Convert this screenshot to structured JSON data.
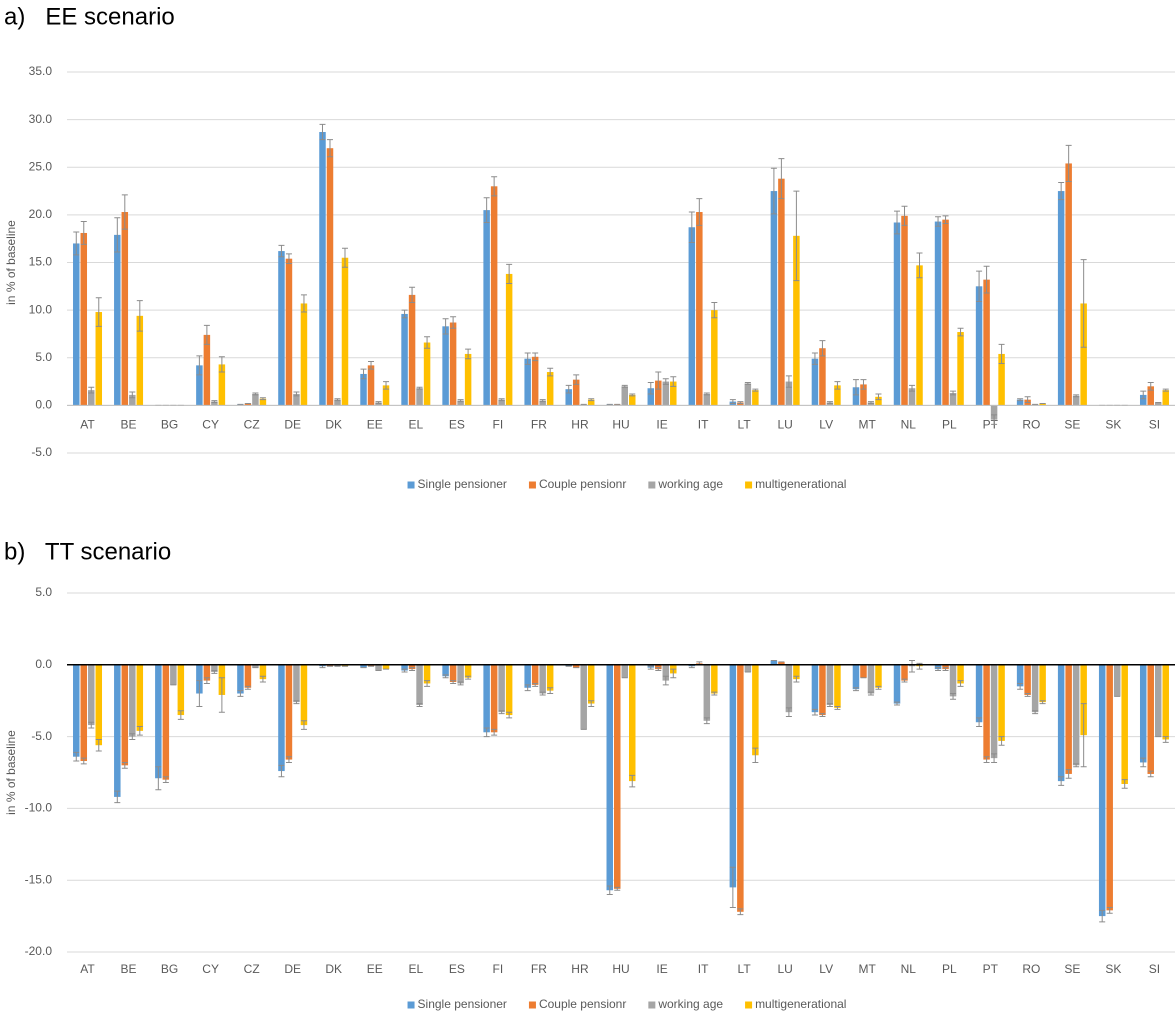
{
  "chart_data": [
    {
      "type": "bar",
      "title": "a)   EE scenario",
      "y_label": "in % of baseline",
      "categories": [
        "AT",
        "BE",
        "BG",
        "CY",
        "CZ",
        "DE",
        "DK",
        "EE",
        "EL",
        "ES",
        "FI",
        "FR",
        "HR",
        "HU",
        "IE",
        "IT",
        "LT",
        "LU",
        "LV",
        "MT",
        "NL",
        "PL",
        "PT",
        "RO",
        "SE",
        "SK",
        "SI"
      ],
      "series": [
        {
          "name": "Single pensioner",
          "color": "#5b9bd5",
          "values": [
            17.0,
            17.9,
            0,
            4.2,
            0.1,
            16.2,
            28.7,
            3.3,
            9.6,
            8.3,
            20.5,
            4.9,
            1.7,
            0.1,
            1.8,
            18.7,
            0.4,
            22.5,
            4.9,
            1.9,
            19.2,
            19.3,
            12.5,
            0.6,
            22.5,
            0,
            1.1
          ],
          "errors": [
            1.2,
            1.8,
            0,
            1.0,
            0,
            0.6,
            0.8,
            0.5,
            0.4,
            0.8,
            1.3,
            0.6,
            0.4,
            0,
            0.6,
            1.6,
            0.2,
            2.4,
            0.6,
            0.8,
            1.2,
            0.5,
            1.6,
            0.1,
            0.9,
            0,
            0.4
          ]
        },
        {
          "name": "Couple pensionr",
          "color": "#ed7d31",
          "values": [
            18.1,
            20.3,
            0,
            7.4,
            0.2,
            15.4,
            27.0,
            4.2,
            11.6,
            8.7,
            23.0,
            5.1,
            2.7,
            0.1,
            2.6,
            20.3,
            0.3,
            23.8,
            6.0,
            2.2,
            19.9,
            19.5,
            13.2,
            0.6,
            25.4,
            0,
            2.0
          ],
          "errors": [
            1.2,
            1.8,
            0,
            1.0,
            0,
            0.5,
            0.9,
            0.4,
            0.8,
            0.6,
            1.0,
            0.4,
            0.5,
            0,
            0.9,
            1.4,
            0.1,
            2.1,
            0.8,
            0.5,
            1.0,
            0.4,
            1.4,
            0.3,
            1.9,
            0,
            0.4
          ]
        },
        {
          "name": "working age",
          "color": "#a5a5a5",
          "values": [
            1.6,
            1.1,
            0,
            0.4,
            1.2,
            1.2,
            0.6,
            0.3,
            1.8,
            0.5,
            0.6,
            0.5,
            0.1,
            2.0,
            2.5,
            1.2,
            2.3,
            2.5,
            0.3,
            0.3,
            1.8,
            1.3,
            -1.5,
            0.1,
            1.0,
            0,
            0.3
          ],
          "errors": [
            0.3,
            0.3,
            0,
            0.1,
            0.1,
            0.2,
            0.1,
            0.1,
            0.1,
            0.1,
            0.1,
            0.1,
            0,
            0.1,
            0.3,
            0.1,
            0.1,
            0.6,
            0.1,
            0.1,
            0.3,
            0.2,
            0.5,
            0,
            0.1,
            0,
            0
          ]
        },
        {
          "name": "multigenerational",
          "color": "#ffc000",
          "values": [
            9.8,
            9.4,
            0,
            4.3,
            0.7,
            10.7,
            15.5,
            2.1,
            6.6,
            5.4,
            13.8,
            3.5,
            0.6,
            1.1,
            2.5,
            10.0,
            1.6,
            17.8,
            2.1,
            0.9,
            14.7,
            7.7,
            5.4,
            0.2,
            10.7,
            0,
            1.6
          ],
          "errors": [
            1.5,
            1.6,
            0,
            0.8,
            0.1,
            0.9,
            1.0,
            0.4,
            0.6,
            0.5,
            1.0,
            0.4,
            0.1,
            0.1,
            0.5,
            0.8,
            0.1,
            4.7,
            0.4,
            0.3,
            1.3,
            0.4,
            1.0,
            0,
            4.6,
            0,
            0.1
          ]
        }
      ],
      "ylim": [
        -5,
        35
      ],
      "yticks": [
        {
          "value": -5,
          "label": "-5.0"
        },
        {
          "value": 0,
          "label": "0.0"
        },
        {
          "value": 5,
          "label": "5.0"
        },
        {
          "value": 10,
          "label": "10.0"
        },
        {
          "value": 15,
          "label": "15.0"
        },
        {
          "value": 20,
          "label": "20.0"
        },
        {
          "value": 25,
          "label": "25.0"
        },
        {
          "value": 30,
          "label": "30.0"
        },
        {
          "value": 35,
          "label": "35.0"
        }
      ],
      "grid": true,
      "legend": "bottom"
    },
    {
      "type": "bar",
      "title": "b)   TT scenario",
      "y_label": "in % of baseline",
      "categories": [
        "AT",
        "BE",
        "BG",
        "CY",
        "CZ",
        "DE",
        "DK",
        "EE",
        "EL",
        "ES",
        "FI",
        "FR",
        "HR",
        "HU",
        "IE",
        "IT",
        "LT",
        "LU",
        "LV",
        "MT",
        "NL",
        "PL",
        "PT",
        "RO",
        "SE",
        "SK",
        "SI"
      ],
      "series": [
        {
          "name": "Single pensioner",
          "color": "#5b9bd5",
          "values": [
            -6.4,
            -9.2,
            -7.9,
            -2.0,
            -2.0,
            -7.4,
            -0.1,
            -0.2,
            -0.4,
            -0.8,
            -4.7,
            -1.6,
            -0.1,
            -15.7,
            -0.2,
            -0.1,
            -15.5,
            0.3,
            -3.3,
            -1.7,
            -2.7,
            -0.3,
            -4.0,
            -1.5,
            -8.1,
            -17.5,
            -6.8
          ],
          "errors": [
            0.3,
            0.4,
            0.8,
            0.9,
            0.2,
            0.4,
            0.1,
            0,
            0.1,
            0.1,
            0.3,
            0.2,
            0,
            0.3,
            0.1,
            0.1,
            1.4,
            0,
            0.2,
            0.1,
            0.1,
            0.1,
            0.3,
            0.2,
            0.3,
            0.4,
            0.3
          ]
        },
        {
          "name": "Couple pensionr",
          "color": "#ed7d31",
          "values": [
            -6.7,
            -7.0,
            -8.0,
            -1.1,
            -1.6,
            -6.6,
            -0.1,
            -0.1,
            -0.3,
            -1.2,
            -4.7,
            -1.4,
            -0.2,
            -15.6,
            -0.3,
            0.1,
            -17.2,
            0.2,
            -3.5,
            -0.9,
            -1.1,
            -0.3,
            -6.6,
            -2.1,
            -7.6,
            -17.1,
            -7.6
          ],
          "errors": [
            0.2,
            0.2,
            0.2,
            0.2,
            0.1,
            0.2,
            0,
            0,
            0.1,
            0.1,
            0.2,
            0.1,
            0,
            0.1,
            0.1,
            0.1,
            0.2,
            0,
            0.1,
            0,
            0.1,
            0.1,
            0.2,
            0.1,
            0.3,
            0.2,
            0.2
          ]
        },
        {
          "name": "working age",
          "color": "#a5a5a5",
          "values": [
            -4.2,
            -5.0,
            -1.4,
            -0.5,
            -0.2,
            -2.6,
            -0.1,
            -0.4,
            -2.8,
            -1.3,
            -3.3,
            -2.0,
            -4.5,
            -0.9,
            -1.1,
            -3.9,
            -0.5,
            -3.3,
            -2.8,
            -2.0,
            -0.1,
            -2.2,
            -6.5,
            -3.3,
            -7.0,
            -2.2,
            -5.0
          ],
          "errors": [
            0.2,
            0.2,
            0,
            0.1,
            0,
            0.1,
            0,
            0,
            0.1,
            0.1,
            0.1,
            0.1,
            0,
            0,
            0.3,
            0.2,
            0,
            0.3,
            0.1,
            0.1,
            0.4,
            0.2,
            0.3,
            0.1,
            0.1,
            0,
            0
          ]
        },
        {
          "name": "multigenerational",
          "color": "#ffc000",
          "values": [
            -5.6,
            -4.6,
            -3.5,
            -2.1,
            -1.0,
            -4.2,
            -0.1,
            -0.3,
            -1.3,
            -0.9,
            -3.5,
            -1.8,
            -2.7,
            -8.1,
            -0.6,
            -2.0,
            -6.3,
            -1.0,
            -3.0,
            -1.6,
            -0.1,
            -1.3,
            -5.3,
            -2.6,
            -4.9,
            -8.3,
            -5.2
          ],
          "errors": [
            0.4,
            0.3,
            0.3,
            1.2,
            0.2,
            0.3,
            0,
            0,
            0.2,
            0.1,
            0.2,
            0.2,
            0.2,
            0.4,
            0.3,
            0.1,
            0.5,
            0.2,
            0.1,
            0.1,
            0.2,
            0.2,
            0.3,
            0.1,
            2.2,
            0.3,
            0.2
          ]
        }
      ],
      "ylim": [
        -20,
        5
      ],
      "yticks": [
        {
          "value": -20,
          "label": "-20.0"
        },
        {
          "value": -15,
          "label": "-15.0"
        },
        {
          "value": -10,
          "label": "-10.0"
        },
        {
          "value": -5,
          "label": "-5.0"
        },
        {
          "value": 0,
          "label": "0.0"
        },
        {
          "value": 5,
          "label": "5.0"
        }
      ],
      "grid": true,
      "legend": "bottom"
    }
  ]
}
